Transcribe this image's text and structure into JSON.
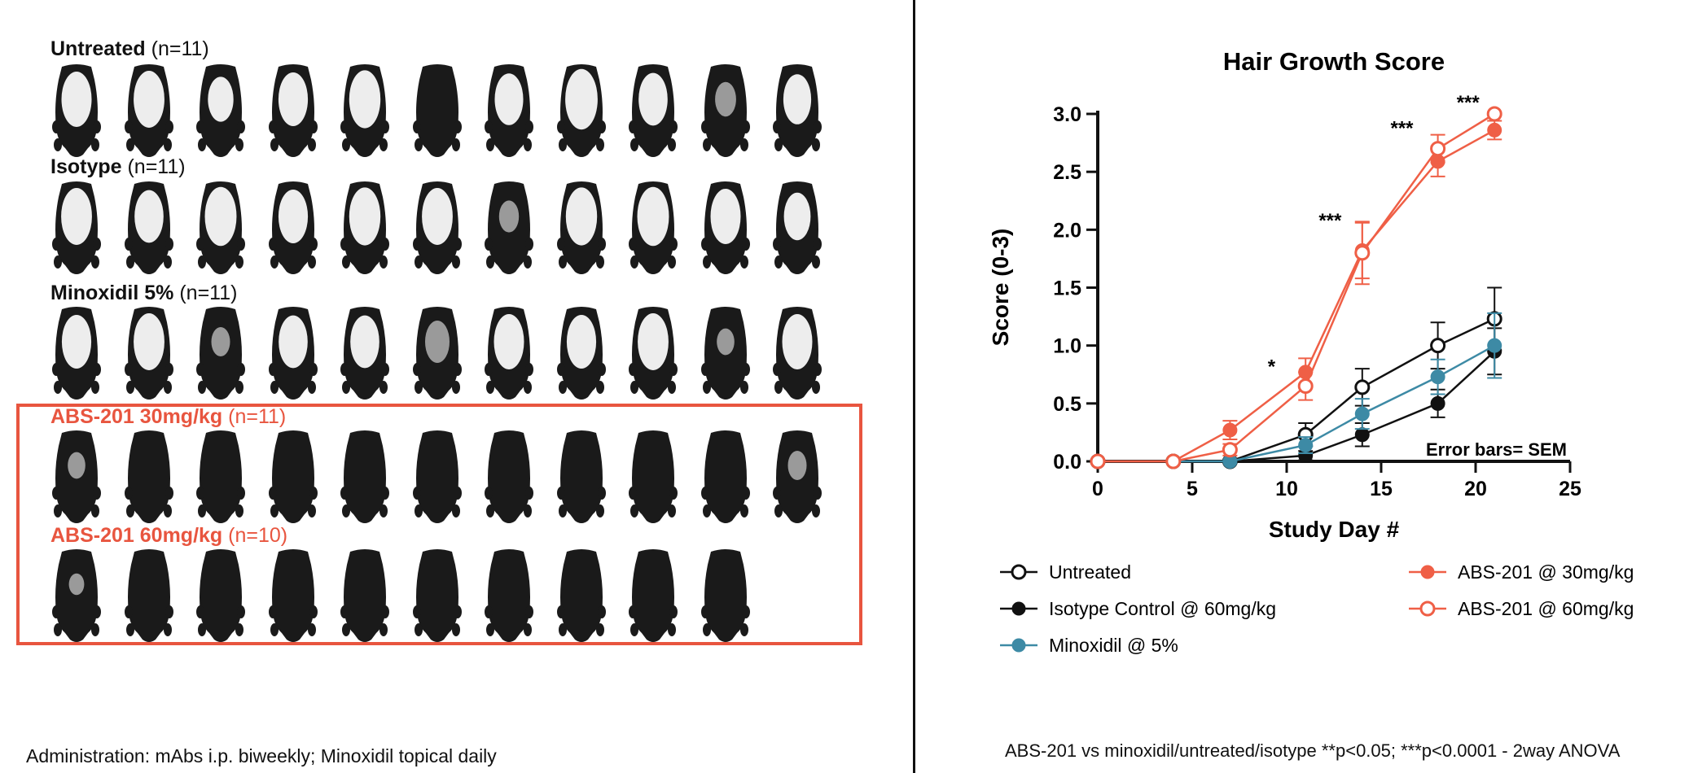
{
  "groups": [
    {
      "name": "Untreated",
      "n": "(n=11)",
      "count": 11,
      "color": "#111111",
      "coverage": [
        0.75,
        0.78,
        0.55,
        0.72,
        0.8,
        0.05,
        0.68,
        0.85,
        0.7,
        0.35,
        0.65
      ]
    },
    {
      "name": "Isotype",
      "n": "(n=11)",
      "count": 11,
      "color": "#111111",
      "coverage": [
        0.78,
        0.7,
        0.82,
        0.72,
        0.8,
        0.78,
        0.3,
        0.8,
        0.82,
        0.75,
        0.6
      ]
    },
    {
      "name": "Minoxidil 5%",
      "n": "(n=11)",
      "count": 11,
      "color": "#111111",
      "coverage": [
        0.72,
        0.78,
        0.25,
        0.7,
        0.7,
        0.5,
        0.75,
        0.72,
        0.78,
        0.2,
        0.75
      ]
    },
    {
      "name": "ABS-201 30mg/kg",
      "n": "(n=11)",
      "count": 11,
      "color": "#e8553f",
      "coverage": [
        0.2,
        0.05,
        0.05,
        0.03,
        0.03,
        0.03,
        0.03,
        0.03,
        0.03,
        0.03,
        0.25
      ]
    },
    {
      "name": "ABS-201 60mg/kg",
      "n": "(n=10)",
      "count": 10,
      "color": "#e8553f",
      "coverage": [
        0.1,
        0.03,
        0.03,
        0.03,
        0.03,
        0.03,
        0.03,
        0.03,
        0.03,
        0.03
      ]
    }
  ],
  "admin_note": "Administration: mAbs i.p. biweekly; Minoxidil topical daily",
  "footnote": "ABS-201 vs minoxidil/untreated/isotype  **p<0.05; ***p<0.0001 - 2way ANOVA",
  "chart_data": {
    "type": "line",
    "title": "Hair Growth Score",
    "xlabel": "Study Day #",
    "ylabel": "Score (0-3)",
    "xlim": [
      0,
      25
    ],
    "ylim": [
      0,
      3
    ],
    "xticks": [
      "0",
      "5",
      "10",
      "15",
      "20",
      "25"
    ],
    "yticks": [
      "0.0",
      "0.5",
      "1.0",
      "1.5",
      "2.0",
      "2.5",
      "3.0"
    ],
    "x": [
      0,
      4,
      7,
      11,
      14,
      18,
      21
    ],
    "error_note": "Error bars= SEM",
    "series": [
      {
        "name": "Untreated",
        "color": "#111111",
        "marker": "open",
        "values": [
          0,
          0,
          0,
          0.23,
          0.64,
          1.0,
          1.23
        ],
        "sem": [
          0,
          0,
          0,
          0.1,
          0.16,
          0.2,
          0.27
        ]
      },
      {
        "name": "Isotype Control @ 60mg/kg",
        "color": "#111111",
        "marker": "filled",
        "values": [
          0,
          0,
          0,
          0.05,
          0.23,
          0.5,
          0.95
        ],
        "sem": [
          0,
          0,
          0,
          0.04,
          0.1,
          0.12,
          0.2
        ]
      },
      {
        "name": "Minoxidil @ 5%",
        "color": "#3d8aa5",
        "marker": "filled",
        "values": [
          0,
          0,
          0,
          0.14,
          0.41,
          0.73,
          1.0
        ],
        "sem": [
          0,
          0,
          0,
          0.07,
          0.13,
          0.15,
          0.28
        ]
      },
      {
        "name": "ABS-201 @ 30mg/kg",
        "color": "#ef5f46",
        "marker": "filled",
        "values": [
          0,
          0,
          0.27,
          0.77,
          1.82,
          2.59,
          2.86
        ],
        "sem": [
          0,
          0,
          0.08,
          0.12,
          0.24,
          0.13,
          0.08
        ]
      },
      {
        "name": "ABS-201 @ 60mg/kg",
        "color": "#ef5f46",
        "marker": "open",
        "values": [
          0,
          0,
          0.1,
          0.65,
          1.8,
          2.7,
          3.0
        ],
        "sem": [
          0,
          0,
          0.05,
          0.12,
          0.27,
          0.12,
          0
        ]
      }
    ],
    "annotations": [
      {
        "text": "*",
        "x": 9.2,
        "y": 0.72
      },
      {
        "text": "***",
        "x": 12.3,
        "y": 1.98
      },
      {
        "text": "***",
        "x": 16.1,
        "y": 2.78
      },
      {
        "text": "***",
        "x": 19.6,
        "y": 3.0
      }
    ],
    "legend_placement": "bottom, two columns"
  }
}
